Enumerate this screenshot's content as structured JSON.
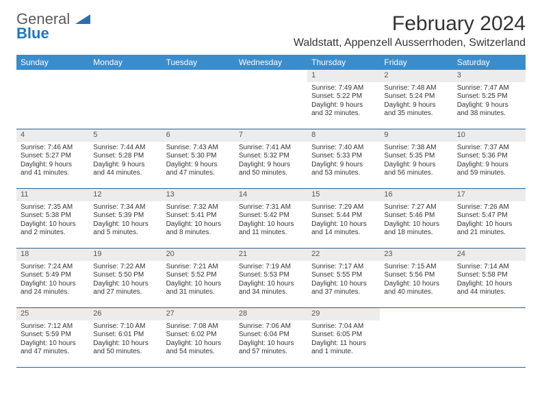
{
  "logo": {
    "line1": "General",
    "line2": "Blue",
    "shape_color": "#2a6fb0"
  },
  "title": "February 2024",
  "location": "Waldstatt, Appenzell Ausserrhoden, Switzerland",
  "colors": {
    "header_bg": "#3b8ccb",
    "header_text": "#ffffff",
    "daynum_bg": "#ececec",
    "week_border": "#2a5f8a",
    "text": "#333333"
  },
  "day_names": [
    "Sunday",
    "Monday",
    "Tuesday",
    "Wednesday",
    "Thursday",
    "Friday",
    "Saturday"
  ],
  "weeks": [
    [
      null,
      null,
      null,
      null,
      {
        "n": "1",
        "sr": "Sunrise: 7:49 AM",
        "ss": "Sunset: 5:22 PM",
        "d1": "Daylight: 9 hours",
        "d2": "and 32 minutes."
      },
      {
        "n": "2",
        "sr": "Sunrise: 7:48 AM",
        "ss": "Sunset: 5:24 PM",
        "d1": "Daylight: 9 hours",
        "d2": "and 35 minutes."
      },
      {
        "n": "3",
        "sr": "Sunrise: 7:47 AM",
        "ss": "Sunset: 5:25 PM",
        "d1": "Daylight: 9 hours",
        "d2": "and 38 minutes."
      }
    ],
    [
      {
        "n": "4",
        "sr": "Sunrise: 7:46 AM",
        "ss": "Sunset: 5:27 PM",
        "d1": "Daylight: 9 hours",
        "d2": "and 41 minutes."
      },
      {
        "n": "5",
        "sr": "Sunrise: 7:44 AM",
        "ss": "Sunset: 5:28 PM",
        "d1": "Daylight: 9 hours",
        "d2": "and 44 minutes."
      },
      {
        "n": "6",
        "sr": "Sunrise: 7:43 AM",
        "ss": "Sunset: 5:30 PM",
        "d1": "Daylight: 9 hours",
        "d2": "and 47 minutes."
      },
      {
        "n": "7",
        "sr": "Sunrise: 7:41 AM",
        "ss": "Sunset: 5:32 PM",
        "d1": "Daylight: 9 hours",
        "d2": "and 50 minutes."
      },
      {
        "n": "8",
        "sr": "Sunrise: 7:40 AM",
        "ss": "Sunset: 5:33 PM",
        "d1": "Daylight: 9 hours",
        "d2": "and 53 minutes."
      },
      {
        "n": "9",
        "sr": "Sunrise: 7:38 AM",
        "ss": "Sunset: 5:35 PM",
        "d1": "Daylight: 9 hours",
        "d2": "and 56 minutes."
      },
      {
        "n": "10",
        "sr": "Sunrise: 7:37 AM",
        "ss": "Sunset: 5:36 PM",
        "d1": "Daylight: 9 hours",
        "d2": "and 59 minutes."
      }
    ],
    [
      {
        "n": "11",
        "sr": "Sunrise: 7:35 AM",
        "ss": "Sunset: 5:38 PM",
        "d1": "Daylight: 10 hours",
        "d2": "and 2 minutes."
      },
      {
        "n": "12",
        "sr": "Sunrise: 7:34 AM",
        "ss": "Sunset: 5:39 PM",
        "d1": "Daylight: 10 hours",
        "d2": "and 5 minutes."
      },
      {
        "n": "13",
        "sr": "Sunrise: 7:32 AM",
        "ss": "Sunset: 5:41 PM",
        "d1": "Daylight: 10 hours",
        "d2": "and 8 minutes."
      },
      {
        "n": "14",
        "sr": "Sunrise: 7:31 AM",
        "ss": "Sunset: 5:42 PM",
        "d1": "Daylight: 10 hours",
        "d2": "and 11 minutes."
      },
      {
        "n": "15",
        "sr": "Sunrise: 7:29 AM",
        "ss": "Sunset: 5:44 PM",
        "d1": "Daylight: 10 hours",
        "d2": "and 14 minutes."
      },
      {
        "n": "16",
        "sr": "Sunrise: 7:27 AM",
        "ss": "Sunset: 5:46 PM",
        "d1": "Daylight: 10 hours",
        "d2": "and 18 minutes."
      },
      {
        "n": "17",
        "sr": "Sunrise: 7:26 AM",
        "ss": "Sunset: 5:47 PM",
        "d1": "Daylight: 10 hours",
        "d2": "and 21 minutes."
      }
    ],
    [
      {
        "n": "18",
        "sr": "Sunrise: 7:24 AM",
        "ss": "Sunset: 5:49 PM",
        "d1": "Daylight: 10 hours",
        "d2": "and 24 minutes."
      },
      {
        "n": "19",
        "sr": "Sunrise: 7:22 AM",
        "ss": "Sunset: 5:50 PM",
        "d1": "Daylight: 10 hours",
        "d2": "and 27 minutes."
      },
      {
        "n": "20",
        "sr": "Sunrise: 7:21 AM",
        "ss": "Sunset: 5:52 PM",
        "d1": "Daylight: 10 hours",
        "d2": "and 31 minutes."
      },
      {
        "n": "21",
        "sr": "Sunrise: 7:19 AM",
        "ss": "Sunset: 5:53 PM",
        "d1": "Daylight: 10 hours",
        "d2": "and 34 minutes."
      },
      {
        "n": "22",
        "sr": "Sunrise: 7:17 AM",
        "ss": "Sunset: 5:55 PM",
        "d1": "Daylight: 10 hours",
        "d2": "and 37 minutes."
      },
      {
        "n": "23",
        "sr": "Sunrise: 7:15 AM",
        "ss": "Sunset: 5:56 PM",
        "d1": "Daylight: 10 hours",
        "d2": "and 40 minutes."
      },
      {
        "n": "24",
        "sr": "Sunrise: 7:14 AM",
        "ss": "Sunset: 5:58 PM",
        "d1": "Daylight: 10 hours",
        "d2": "and 44 minutes."
      }
    ],
    [
      {
        "n": "25",
        "sr": "Sunrise: 7:12 AM",
        "ss": "Sunset: 5:59 PM",
        "d1": "Daylight: 10 hours",
        "d2": "and 47 minutes."
      },
      {
        "n": "26",
        "sr": "Sunrise: 7:10 AM",
        "ss": "Sunset: 6:01 PM",
        "d1": "Daylight: 10 hours",
        "d2": "and 50 minutes."
      },
      {
        "n": "27",
        "sr": "Sunrise: 7:08 AM",
        "ss": "Sunset: 6:02 PM",
        "d1": "Daylight: 10 hours",
        "d2": "and 54 minutes."
      },
      {
        "n": "28",
        "sr": "Sunrise: 7:06 AM",
        "ss": "Sunset: 6:04 PM",
        "d1": "Daylight: 10 hours",
        "d2": "and 57 minutes."
      },
      {
        "n": "29",
        "sr": "Sunrise: 7:04 AM",
        "ss": "Sunset: 6:05 PM",
        "d1": "Daylight: 11 hours",
        "d2": "and 1 minute."
      },
      null,
      null
    ]
  ]
}
